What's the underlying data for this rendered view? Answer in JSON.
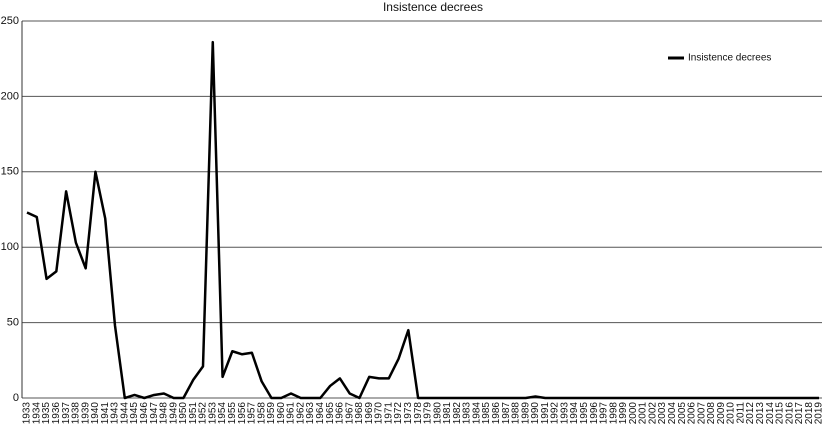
{
  "chart_data": {
    "type": "line",
    "title": "Insistence decrees",
    "categories": [
      "1933",
      "1934",
      "1935",
      "1936",
      "1937",
      "1938",
      "1939",
      "1940",
      "1941",
      "1943",
      "1944",
      "1945",
      "1946",
      "1947",
      "1948",
      "1949",
      "1950",
      "1951",
      "1952",
      "1953",
      "1954",
      "1955",
      "1956",
      "1957",
      "1958",
      "1959",
      "1960",
      "1961",
      "1962",
      "1963",
      "1964",
      "1965",
      "1966",
      "1967",
      "1968",
      "1969",
      "1970",
      "1971",
      "1972",
      "1973",
      "1978",
      "1979",
      "1980",
      "1981",
      "1982",
      "1983",
      "1984",
      "1985",
      "1986",
      "1987",
      "1988",
      "1989",
      "1990",
      "1991",
      "1992",
      "1993",
      "1994",
      "1995",
      "1996",
      "1997",
      "1998",
      "1999",
      "2000",
      "2001",
      "2002",
      "2003",
      "2004",
      "2005",
      "2006",
      "2007",
      "2008",
      "2009",
      "2010",
      "2011",
      "2012",
      "2013",
      "2014",
      "2015",
      "2016",
      "2017",
      "2018",
      "2019"
    ],
    "series": [
      {
        "name": "Insistence decrees",
        "color": "#000000",
        "values": [
          123,
          120,
          79,
          84,
          137,
          103,
          86,
          150,
          119,
          48,
          0,
          2,
          0,
          2,
          3,
          0,
          0,
          12,
          21,
          236,
          14,
          31,
          29,
          30,
          11,
          0,
          0,
          3,
          0,
          0,
          0,
          8,
          13,
          3,
          0,
          14,
          13,
          13,
          26,
          45,
          0,
          0,
          0,
          0,
          0,
          0,
          0,
          0,
          0,
          0,
          0,
          0,
          1,
          0,
          0,
          0,
          0,
          0,
          0,
          0,
          0,
          0,
          0,
          0,
          0,
          0,
          0,
          0,
          0,
          0,
          0,
          0,
          0,
          0,
          0,
          0,
          0,
          0,
          0,
          0,
          0,
          0
        ]
      }
    ],
    "ylim": [
      0,
      250
    ],
    "yticks": [
      0,
      50,
      100,
      150,
      200,
      250
    ],
    "grid": true,
    "legend": "upper-right"
  }
}
